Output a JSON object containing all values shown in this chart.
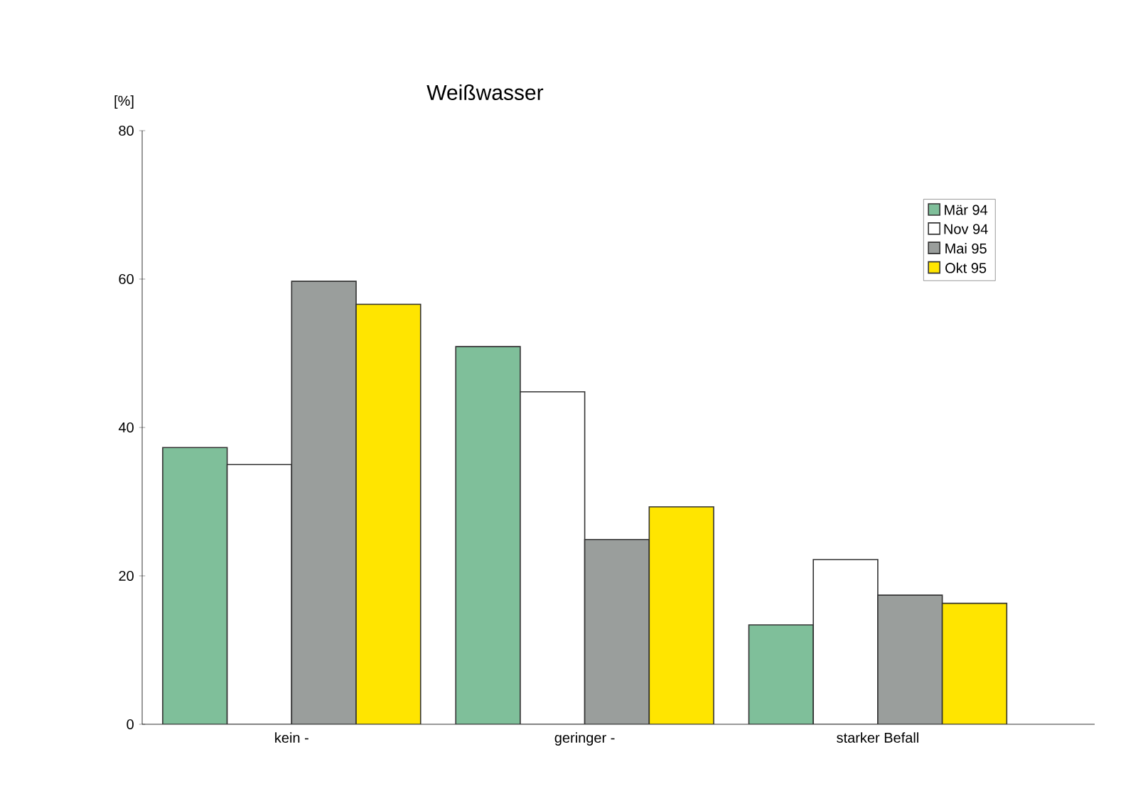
{
  "chart_data": {
    "type": "bar",
    "title": "Weißwasser",
    "ylabel": "[%]",
    "categories": [
      "kein -",
      "geringer -",
      "starker Befall"
    ],
    "series": [
      {
        "name": "Mär 94",
        "color": "#7fbf9a",
        "values": [
          37.3,
          50.9,
          13.4
        ]
      },
      {
        "name": "Nov 94",
        "color": "#ffffff",
        "values": [
          35,
          44.8,
          22.2
        ]
      },
      {
        "name": "Mai 95",
        "color": "#9a9e9c",
        "values": [
          59.7,
          24.9,
          17.4
        ]
      },
      {
        "name": "Okt 95",
        "color": "#ffe500",
        "values": [
          56.6,
          29.3,
          16.3
        ]
      }
    ],
    "ylim": [
      0,
      80
    ],
    "yticks": [
      0,
      20,
      40,
      60,
      80
    ],
    "legend": "top right"
  }
}
